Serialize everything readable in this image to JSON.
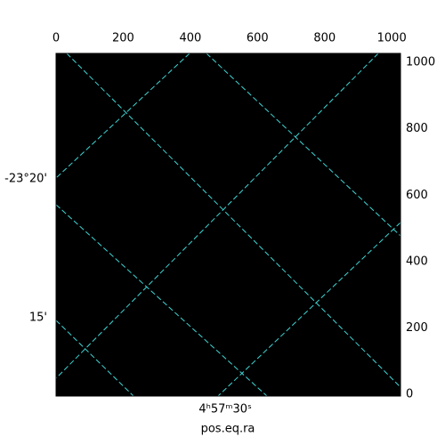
{
  "chart_data": {
    "type": "image",
    "xlabel": "pos.eq.ra",
    "xlim": [
      0,
      1026
    ],
    "ylim": [
      -5,
      1027
    ],
    "xticks": [
      0,
      200,
      400,
      600,
      800,
      1000
    ],
    "yticks": [
      0,
      200,
      400,
      600,
      800,
      1000
    ],
    "dec_ticks": [
      {
        "value": 649,
        "label": "-23°20'"
      },
      {
        "value": 231,
        "label": "15'"
      }
    ],
    "ra_ticks": [
      {
        "value": 504,
        "label": "4ʰ57ᵐ30ˢ"
      }
    ],
    "grid_color": "#3fd6d6"
  }
}
